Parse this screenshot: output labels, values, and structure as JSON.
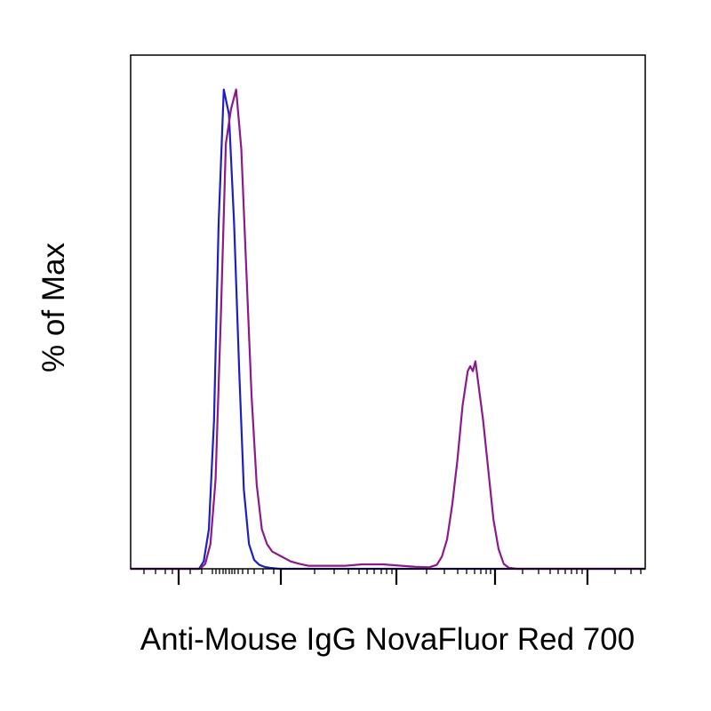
{
  "chart_data": {
    "type": "line",
    "title": "",
    "xlabel": "Anti-Mouse IgG NovaFluor Red 700",
    "ylabel": "% of Max",
    "xlim": [
      0,
      100
    ],
    "ylim": [
      0,
      100
    ],
    "grid": false,
    "legend": "none",
    "series": [
      {
        "color": "#1f1fbf",
        "x": [
          0,
          13.3,
          14.2,
          15.2,
          16.2,
          17.1,
          18.1,
          19.1,
          20.1,
          21.1,
          22.0,
          23.0,
          24.0,
          25.0,
          26.0,
          27.0,
          28.0,
          29.0,
          30.0,
          100
        ],
        "y": [
          0,
          0,
          1.5,
          8,
          30,
          70,
          97,
          92,
          70,
          40,
          16,
          5,
          1.8,
          0.8,
          0.4,
          0.2,
          0.1,
          0,
          0,
          0
        ]
      },
      {
        "color": "#8b1a8b",
        "x": [
          0,
          13.5,
          14.5,
          15.5,
          16.5,
          17.5,
          18.5,
          19.5,
          20.5,
          21.5,
          22.5,
          23.5,
          24.5,
          25.5,
          26.5,
          27.5,
          29.3,
          31.1,
          32.8,
          34.6,
          41.5,
          45.0,
          49.0,
          55.3,
          58.0,
          59.5,
          60.5,
          61.5,
          62.5,
          63.5,
          64.5,
          65.5,
          66.0,
          66.5,
          67.0,
          67.5,
          68.5,
          69.5,
          70.5,
          71.5,
          72.5,
          73.5,
          75.0,
          100
        ],
        "y": [
          0,
          0,
          1,
          5,
          18,
          50,
          86,
          93,
          97,
          85,
          60,
          35,
          17,
          8,
          5,
          3.5,
          2.5,
          1.5,
          1,
          0.6,
          0.6,
          0.9,
          0.9,
          0.4,
          0.3,
          0.8,
          2.5,
          6,
          13,
          22,
          33,
          40,
          41,
          40,
          42,
          38,
          30,
          20,
          10,
          4,
          1,
          0.2,
          0,
          0
        ]
      }
    ]
  }
}
